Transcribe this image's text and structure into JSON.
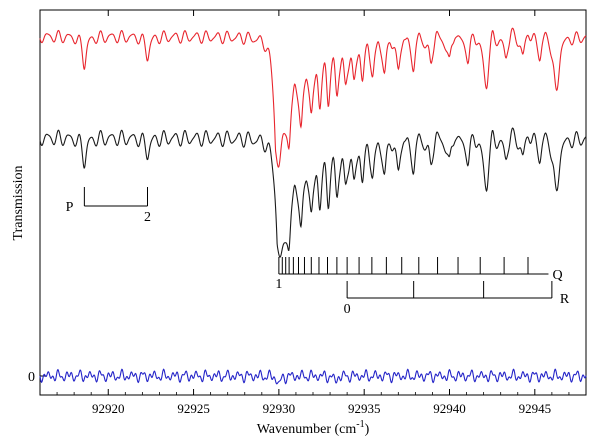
{
  "chart_data": {
    "type": "line",
    "xlabel_main": "Wavenumber (cm",
    "xlabel_sup": "-1",
    "xlabel_end": ")",
    "ylabel": "Transmission",
    "xlim": [
      92916,
      92948
    ],
    "x_ticks": [
      92920,
      92925,
      92930,
      92935,
      92940,
      92945
    ],
    "x_tick_labels": [
      "92920",
      "92925",
      "92930",
      "92935",
      "92940",
      "92945"
    ],
    "y_zero_label": "0",
    "colors": {
      "simulated": "#e8262e",
      "observed": "#1a1a1a",
      "residual": "#2424c8"
    },
    "series": [
      {
        "role": "simulated",
        "baseline": 0.87,
        "ripple": 0.012,
        "p_lines": [
          {
            "x": 92918.6,
            "depth": 0.07
          },
          {
            "x": 92922.3,
            "depth": 0.05
          }
        ],
        "band_head_x": 92929.8,
        "band_head_depth": 0.34,
        "band_lines": [
          92930.6,
          92931.3,
          92931.9,
          92932.4,
          92932.9,
          92933.4,
          92933.9,
          92934.4,
          92934.9,
          92935.5,
          92936.2,
          92937.0,
          92937.9,
          92938.9,
          92940.0,
          92941.1,
          92942.2,
          92943.3,
          92944.3,
          92945.3,
          92946.2
        ],
        "extra_dips": [
          {
            "x": 92942.1,
            "depth": 0.08
          },
          {
            "x": 92946.3,
            "depth": 0.12
          }
        ]
      },
      {
        "role": "observed",
        "baseline": 0.61,
        "ripple": 0.015,
        "p_lines": [
          {
            "x": 92918.6,
            "depth": 0.06
          },
          {
            "x": 92922.3,
            "depth": 0.04
          }
        ],
        "band_head_x": 92929.9,
        "band_head_depth": 0.32,
        "band_lines": [
          92930.6,
          92931.3,
          92931.9,
          92932.4,
          92932.9,
          92933.4,
          92933.9,
          92934.4,
          92934.9,
          92935.5,
          92936.2,
          92937.0,
          92937.9,
          92938.9,
          92940.0,
          92941.1,
          92942.2,
          92943.3,
          92944.3,
          92945.3,
          92946.2
        ],
        "extra_dips": [
          {
            "x": 92942.1,
            "depth": 0.08
          },
          {
            "x": 92946.3,
            "depth": 0.12
          }
        ]
      },
      {
        "role": "residual",
        "baseline": 0.0,
        "ripple": 0.008
      }
    ],
    "annotations": {
      "P": {
        "label": "P",
        "tick_x": [
          92918.6,
          92922.3
        ],
        "tick_labels": [
          "",
          "2"
        ]
      },
      "Q": {
        "label": "Q",
        "start_label": "1",
        "ticks_x": [
          92930.0,
          92930.2,
          92930.4,
          92930.6,
          92930.85,
          92931.15,
          92931.5,
          92931.9,
          92932.35,
          92932.85,
          92933.4,
          92934.0,
          92934.7,
          92935.45,
          92936.3,
          92937.2,
          92938.2,
          92939.3,
          92940.5,
          92941.8,
          92943.2,
          92944.6
        ],
        "end_x": 92945.8
      },
      "R": {
        "label": "R",
        "start_label": "0",
        "ticks_x": [
          92934.0,
          92937.9,
          92942.0,
          92946.0
        ]
      }
    }
  }
}
